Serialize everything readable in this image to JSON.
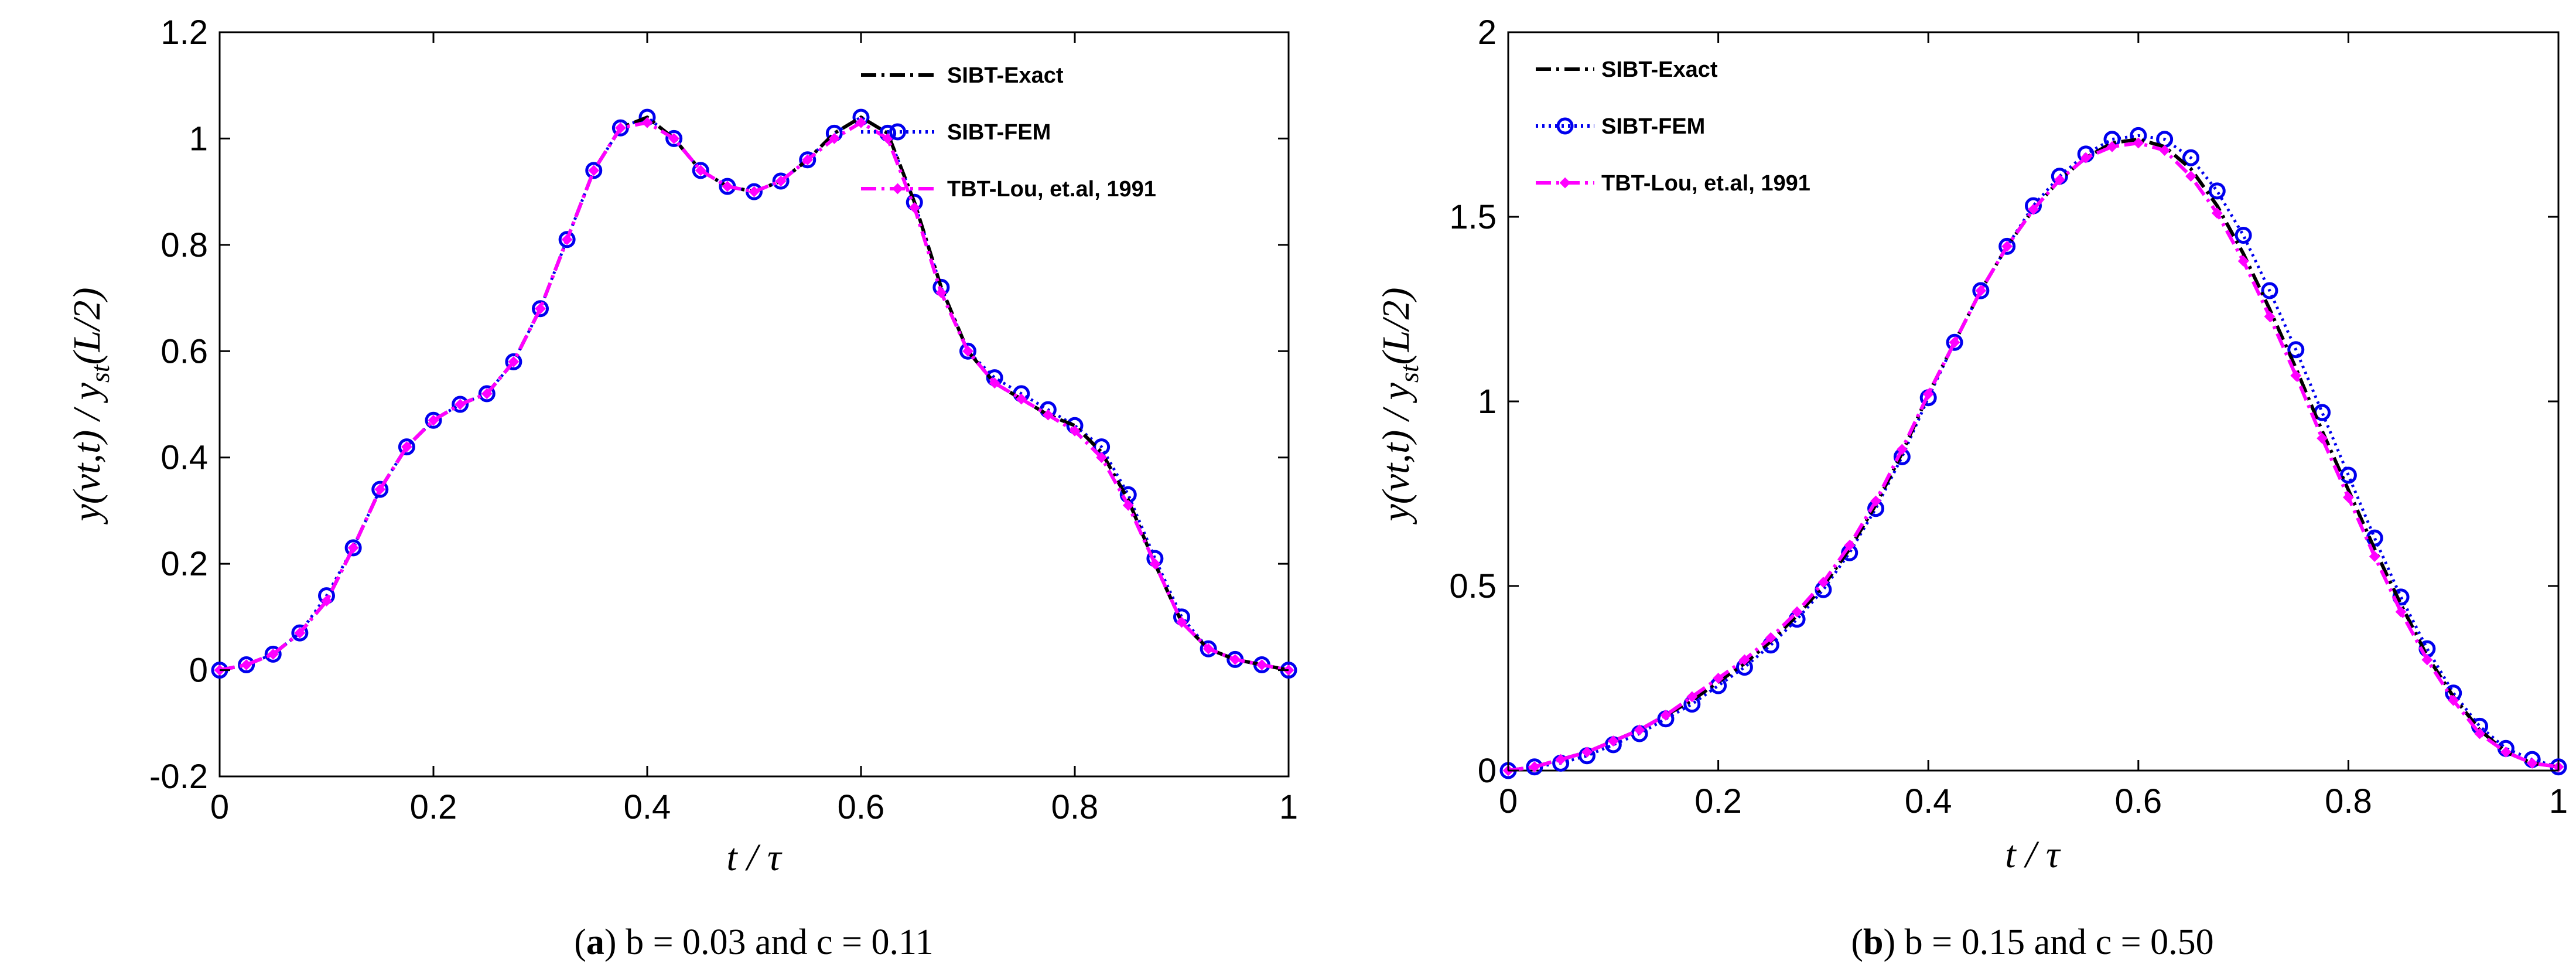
{
  "chart_data": [
    {
      "type": "line",
      "id": "a",
      "xlabel": "t / τ",
      "ylabel": "y(vt,t) / y_st(L/2)",
      "ylabel_parts": [
        "y(vt,t) / y",
        "st",
        "(L/2)"
      ],
      "xlim": [
        0,
        1
      ],
      "ylim": [
        -0.2,
        1.2
      ],
      "xticks": [
        0,
        0.2,
        0.4,
        0.6,
        0.8,
        1
      ],
      "xtick_labels": [
        "0",
        "0.2",
        "0.4",
        "0.6",
        "0.8",
        "1"
      ],
      "yticks": [
        -0.2,
        0,
        0.2,
        0.4,
        0.6,
        0.8,
        1,
        1.2
      ],
      "ytick_labels": [
        "-0.2",
        "0",
        "0.2",
        "0.4",
        "0.6",
        "0.8",
        "1",
        "1.2"
      ],
      "legend_position": "top-right",
      "caption": {
        "label": "a",
        "text": " b = 0.03 and c = 0.11"
      },
      "x": [
        0,
        0.025,
        0.05,
        0.075,
        0.1,
        0.125,
        0.15,
        0.175,
        0.2,
        0.225,
        0.25,
        0.275,
        0.3,
        0.325,
        0.35,
        0.375,
        0.4,
        0.425,
        0.45,
        0.475,
        0.5,
        0.525,
        0.55,
        0.575,
        0.6,
        0.625,
        0.65,
        0.675,
        0.7,
        0.725,
        0.75,
        0.775,
        0.8,
        0.825,
        0.85,
        0.875,
        0.9,
        0.925,
        0.95,
        0.975,
        1
      ],
      "series": [
        {
          "name": "SIBT-Exact",
          "style": "dashdot",
          "color": "#000000",
          "marker": "none",
          "values": [
            0,
            0.01,
            0.03,
            0.07,
            0.13,
            0.23,
            0.34,
            0.42,
            0.47,
            0.5,
            0.52,
            0.58,
            0.68,
            0.81,
            0.94,
            1.02,
            1.04,
            1.0,
            0.94,
            0.91,
            0.9,
            0.92,
            0.96,
            1.01,
            1.04,
            1.01,
            0.88,
            0.72,
            0.6,
            0.54,
            0.51,
            0.48,
            0.46,
            0.41,
            0.32,
            0.2,
            0.09,
            0.04,
            0.02,
            0.01,
            0
          ]
        },
        {
          "name": "SIBT-FEM",
          "style": "dotted",
          "color": "#0000ee",
          "marker": "circle",
          "values": [
            0,
            0.01,
            0.03,
            0.07,
            0.14,
            0.23,
            0.34,
            0.42,
            0.47,
            0.5,
            0.52,
            0.58,
            0.68,
            0.81,
            0.94,
            1.02,
            1.04,
            1.0,
            0.94,
            0.91,
            0.9,
            0.92,
            0.96,
            1.01,
            1.04,
            1.01,
            0.88,
            0.72,
            0.6,
            0.55,
            0.52,
            0.49,
            0.46,
            0.42,
            0.33,
            0.21,
            0.1,
            0.04,
            0.02,
            0.01,
            0
          ]
        },
        {
          "name": "TBT-Lou, et.al, 1991",
          "style": "dashdot",
          "color": "#ff00ff",
          "marker": "diamond",
          "values": [
            0,
            0.01,
            0.03,
            0.07,
            0.13,
            0.23,
            0.34,
            0.42,
            0.47,
            0.5,
            0.52,
            0.58,
            0.68,
            0.81,
            0.94,
            1.02,
            1.03,
            1.0,
            0.94,
            0.91,
            0.9,
            0.92,
            0.96,
            1.0,
            1.03,
            1.0,
            0.87,
            0.71,
            0.6,
            0.54,
            0.51,
            0.48,
            0.45,
            0.4,
            0.31,
            0.2,
            0.09,
            0.04,
            0.02,
            0.01,
            0
          ]
        }
      ]
    },
    {
      "type": "line",
      "id": "b",
      "xlabel": "t / τ",
      "ylabel": "y(vt,t) / y_st(L/2)",
      "ylabel_parts": [
        "y(vt,t) / y",
        "st",
        "(L/2)"
      ],
      "xlim": [
        0,
        1
      ],
      "ylim": [
        0,
        2
      ],
      "xticks": [
        0,
        0.2,
        0.4,
        0.6,
        0.8,
        1
      ],
      "xtick_labels": [
        "0",
        "0.2",
        "0.4",
        "0.6",
        "0.8",
        "1"
      ],
      "yticks": [
        0,
        0.5,
        1,
        1.5,
        2
      ],
      "ytick_labels": [
        "0",
        "0.5",
        "1",
        "1.5",
        "2"
      ],
      "legend_position": "top-left",
      "caption": {
        "label": "b",
        "text": " b = 0.15 and c = 0.50"
      },
      "x": [
        0,
        0.025,
        0.05,
        0.075,
        0.1,
        0.125,
        0.15,
        0.175,
        0.2,
        0.225,
        0.25,
        0.275,
        0.3,
        0.325,
        0.35,
        0.375,
        0.4,
        0.425,
        0.45,
        0.475,
        0.5,
        0.525,
        0.55,
        0.575,
        0.6,
        0.625,
        0.65,
        0.675,
        0.7,
        0.725,
        0.75,
        0.775,
        0.8,
        0.825,
        0.85,
        0.875,
        0.9,
        0.925,
        0.95,
        0.975,
        1
      ],
      "series": [
        {
          "name": "SIBT-Exact",
          "style": "dashdot",
          "color": "#000000",
          "marker": "none",
          "values": [
            0,
            0.01,
            0.03,
            0.05,
            0.08,
            0.11,
            0.15,
            0.19,
            0.24,
            0.29,
            0.35,
            0.42,
            0.5,
            0.6,
            0.72,
            0.86,
            1.02,
            1.16,
            1.3,
            1.42,
            1.52,
            1.6,
            1.66,
            1.7,
            1.71,
            1.69,
            1.63,
            1.53,
            1.4,
            1.25,
            1.09,
            0.92,
            0.76,
            0.6,
            0.45,
            0.31,
            0.2,
            0.11,
            0.05,
            0.02,
            0.01
          ]
        },
        {
          "name": "SIBT-FEM",
          "style": "dotted",
          "color": "#0000ee",
          "marker": "circle",
          "values": [
            0,
            0.01,
            0.02,
            0.04,
            0.07,
            0.1,
            0.14,
            0.18,
            0.23,
            0.28,
            0.34,
            0.41,
            0.49,
            0.59,
            0.71,
            0.85,
            1.01,
            1.16,
            1.3,
            1.42,
            1.53,
            1.61,
            1.67,
            1.71,
            1.72,
            1.71,
            1.66,
            1.57,
            1.45,
            1.3,
            1.14,
            0.97,
            0.8,
            0.63,
            0.47,
            0.33,
            0.21,
            0.12,
            0.06,
            0.03,
            0.01
          ]
        },
        {
          "name": "TBT-Lou, et.al, 1991",
          "style": "dashdot",
          "color": "#ff00ff",
          "marker": "diamond",
          "values": [
            0,
            0.01,
            0.03,
            0.05,
            0.08,
            0.11,
            0.15,
            0.2,
            0.25,
            0.3,
            0.36,
            0.43,
            0.51,
            0.61,
            0.73,
            0.87,
            1.02,
            1.16,
            1.3,
            1.42,
            1.52,
            1.6,
            1.66,
            1.69,
            1.7,
            1.68,
            1.61,
            1.51,
            1.38,
            1.23,
            1.07,
            0.9,
            0.74,
            0.58,
            0.43,
            0.3,
            0.19,
            0.1,
            0.05,
            0.02,
            0.01
          ]
        }
      ]
    }
  ]
}
